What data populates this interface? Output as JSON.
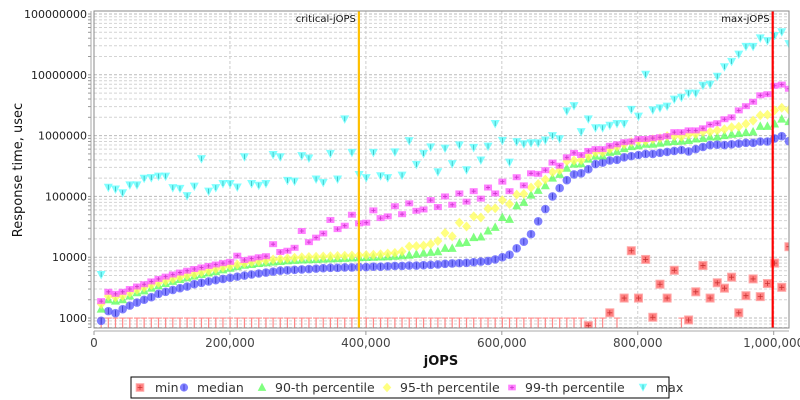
{
  "chart_data": {
    "type": "scatter",
    "title": "",
    "xlabel": "jOPS",
    "ylabel": "Response time, usec",
    "xlim": [
      0,
      1022500
    ],
    "ylim": [
      686,
      112000000
    ],
    "yscale": "log",
    "grid": true,
    "legend_position": "bottom",
    "x_ticks": [
      0,
      200000,
      400000,
      600000,
      800000,
      1000000
    ],
    "x_tick_labels": [
      "0",
      "200,000",
      "400,000",
      "600,000",
      "800,000",
      "1,000,000"
    ],
    "y_ticks": [
      1000,
      10000,
      100000,
      1000000,
      10000000,
      100000000
    ],
    "y_tick_labels": [
      "1000",
      "10000",
      "100000",
      "1000000",
      "10000000",
      "100000000"
    ],
    "annotations": [
      {
        "label": "critical-jOPS",
        "x": 389700,
        "color": "#ffc000"
      },
      {
        "label": "max-jOPS",
        "x": 998500,
        "color": "#ff0000"
      }
    ],
    "x": [
      10540,
      21080,
      31620,
      42160,
      52700,
      63240,
      73780,
      84320,
      94860,
      105400,
      115940,
      126480,
      137020,
      147560,
      158100,
      168640,
      179180,
      189720,
      200260,
      210800,
      221340,
      231880,
      242420,
      252960,
      263500,
      274040,
      284580,
      295120,
      305660,
      316200,
      326740,
      337280,
      347820,
      358360,
      368900,
      379440,
      389980,
      400520,
      411060,
      421600,
      432140,
      442680,
      453220,
      463760,
      474300,
      484840,
      495380,
      505920,
      516460,
      527000,
      537540,
      548080,
      558620,
      569160,
      579700,
      590240,
      600780,
      611320,
      621860,
      632400,
      642940,
      653480,
      664020,
      674560,
      685100,
      695640,
      706180,
      716720,
      727260,
      737800,
      748340,
      758880,
      769420,
      779960,
      790500,
      801040,
      811580,
      822120,
      832660,
      843200,
      853740,
      864280,
      874820,
      885360,
      895900,
      906440,
      916980,
      927520,
      938060,
      948600,
      959140,
      969680,
      980220,
      990760,
      1001300,
      1011840,
      1022380
    ],
    "series": [
      {
        "name": "min",
        "color": "#ff5555",
        "marker": "square",
        "values": [
          null,
          null,
          null,
          null,
          null,
          null,
          null,
          null,
          null,
          null,
          null,
          null,
          null,
          null,
          null,
          null,
          null,
          null,
          null,
          null,
          null,
          null,
          null,
          null,
          null,
          null,
          null,
          null,
          null,
          null,
          null,
          null,
          null,
          null,
          null,
          null,
          null,
          null,
          null,
          null,
          null,
          null,
          null,
          null,
          null,
          null,
          null,
          null,
          null,
          null,
          null,
          null,
          null,
          null,
          null,
          null,
          null,
          null,
          null,
          null,
          null,
          null,
          null,
          null,
          null,
          null,
          null,
          null,
          750,
          null,
          null,
          1220,
          null,
          2130,
          12800,
          2130,
          9200,
          1030,
          3600,
          2130,
          6100,
          null,
          930,
          2700,
          7300,
          2130,
          3800,
          3100,
          4700,
          1220,
          2330,
          4400,
          2250,
          3700,
          8000,
          3200,
          14900
        ]
      },
      {
        "name": "median",
        "color": "#5555ff",
        "marker": "circle",
        "values": [
          900,
          1300,
          1200,
          1400,
          1600,
          1800,
          2000,
          2200,
          2500,
          2700,
          2900,
          3100,
          3300,
          3600,
          3800,
          4000,
          4200,
          4400,
          4600,
          4800,
          5000,
          5200,
          5400,
          5600,
          5800,
          6000,
          6100,
          6200,
          6300,
          6400,
          6500,
          6600,
          6700,
          6700,
          6800,
          6800,
          6900,
          6900,
          7000,
          7000,
          7100,
          7200,
          7200,
          7300,
          7300,
          7400,
          7500,
          7600,
          7800,
          7900,
          8000,
          8100,
          8300,
          8500,
          8700,
          9200,
          10000,
          11000,
          14000,
          18000,
          24000,
          39000,
          62000,
          100000,
          137000,
          185000,
          230000,
          240000,
          280000,
          340000,
          360000,
          390000,
          400000,
          440000,
          460000,
          480000,
          500000,
          500000,
          520000,
          540000,
          560000,
          580000,
          550000,
          600000,
          650000,
          700000,
          710000,
          700000,
          720000,
          740000,
          760000,
          760000,
          800000,
          800000,
          900000,
          980000,
          810000
        ]
      },
      {
        "name": "90-th percentile",
        "color": "#55ff55",
        "marker": "triangle-up",
        "values": [
          1400,
          2000,
          1900,
          2000,
          2300,
          2600,
          2800,
          3100,
          3400,
          3700,
          4000,
          4300,
          4600,
          4900,
          5200,
          5500,
          5800,
          6200,
          6600,
          7000,
          7400,
          7600,
          7900,
          8100,
          8300,
          8500,
          8700,
          8900,
          9000,
          9100,
          9200,
          9300,
          9400,
          9500,
          9600,
          9700,
          9800,
          9900,
          10000,
          10100,
          10200,
          10400,
          10600,
          10800,
          11200,
          11700,
          12000,
          12300,
          14000,
          14000,
          17000,
          17500,
          21000,
          21500,
          27000,
          31000,
          45000,
          42000,
          70000,
          80000,
          105000,
          126000,
          150000,
          200000,
          230000,
          290000,
          340000,
          345000,
          410000,
          460000,
          465000,
          530000,
          550000,
          610000,
          660000,
          680000,
          720000,
          720000,
          750000,
          780000,
          800000,
          810000,
          830000,
          880000,
          900000,
          950000,
          950000,
          1000000,
          1050000,
          1080000,
          1120000,
          1150000,
          1420000,
          1420000,
          1550000,
          1870000,
          1700000
        ]
      },
      {
        "name": "95-th percentile",
        "color": "#ffff55",
        "marker": "diamond",
        "values": [
          1700,
          2300,
          2200,
          2300,
          2600,
          2900,
          3200,
          3500,
          3800,
          4100,
          4400,
          4700,
          5000,
          5300,
          5700,
          6000,
          6400,
          6800,
          7200,
          7600,
          8000,
          8300,
          8600,
          8900,
          9200,
          9400,
          9600,
          9800,
          10000,
          10100,
          10200,
          10300,
          10400,
          10500,
          10600,
          10700,
          10800,
          10900,
          11000,
          11200,
          11500,
          11800,
          12500,
          15000,
          15200,
          15500,
          16500,
          18500,
          25000,
          22000,
          37000,
          32000,
          47000,
          45000,
          63000,
          64000,
          87000,
          75000,
          107000,
          110000,
          140000,
          160000,
          190000,
          250000,
          270000,
          380000,
          390000,
          395000,
          460000,
          530000,
          530000,
          600000,
          660000,
          720000,
          780000,
          820000,
          820000,
          870000,
          910000,
          980000,
          980000,
          960000,
          1040000,
          1060000,
          1150000,
          1150000,
          1220000,
          1270000,
          1370000,
          1400000,
          1560000,
          1760000,
          2150000,
          2200000,
          2600000,
          2870000,
          2650000
        ]
      },
      {
        "name": "99-th percentile",
        "color": "#ff55ff",
        "marker": "rect",
        "values": [
          1900,
          2700,
          2500,
          2700,
          3000,
          3300,
          3600,
          4000,
          4400,
          4800,
          5200,
          5600,
          6000,
          6400,
          6800,
          7200,
          7600,
          8000,
          8400,
          10600,
          9000,
          9500,
          10000,
          10400,
          16400,
          12200,
          12800,
          14300,
          27000,
          17700,
          21000,
          24600,
          41000,
          29000,
          33000,
          50000,
          36000,
          37000,
          59000,
          44000,
          47000,
          69000,
          51000,
          77000,
          58000,
          61000,
          87000,
          67000,
          100000,
          73000,
          112000,
          82000,
          122000,
          92000,
          140000,
          112000,
          175000,
          122000,
          207000,
          152000,
          240000,
          235000,
          270000,
          360000,
          320000,
          440000,
          520000,
          480000,
          560000,
          600000,
          600000,
          680000,
          720000,
          780000,
          800000,
          880000,
          880000,
          910000,
          940000,
          980000,
          1140000,
          1140000,
          1220000,
          1220000,
          1320000,
          1520000,
          1600000,
          1860000,
          2000000,
          2600000,
          3050000,
          3600000,
          4600000,
          4800000,
          6600000,
          6900000,
          5900000
        ]
      },
      {
        "name": "max",
        "color": "#55ffff",
        "marker": "triangle-down",
        "values": [
          5100,
          139000,
          130000,
          113000,
          152000,
          152000,
          195000,
          200000,
          212000,
          212000,
          137000,
          133000,
          101000,
          145000,
          410000,
          120000,
          137000,
          160000,
          160000,
          140000,
          440000,
          160000,
          150000,
          160000,
          480000,
          440000,
          180000,
          175000,
          460000,
          420000,
          190000,
          167000,
          500000,
          190000,
          1850000,
          520000,
          225000,
          200000,
          520000,
          215000,
          200000,
          530000,
          220000,
          810000,
          330000,
          500000,
          640000,
          250000,
          610000,
          340000,
          690000,
          270000,
          630000,
          390000,
          660000,
          1550000,
          820000,
          360000,
          780000,
          720000,
          750000,
          750000,
          830000,
          980000,
          870000,
          2500000,
          3050000,
          1140000,
          1850000,
          1320000,
          1320000,
          1450000,
          1550000,
          1550000,
          2650000,
          2050000,
          10000000,
          2600000,
          2800000,
          3000000,
          3900000,
          4200000,
          4900000,
          4900000,
          6600000,
          6900000,
          9300000,
          13300000,
          16300000,
          21500000,
          28800000,
          28800000,
          39700000,
          35800000,
          43400000,
          50000000,
          32000000
        ]
      }
    ]
  }
}
